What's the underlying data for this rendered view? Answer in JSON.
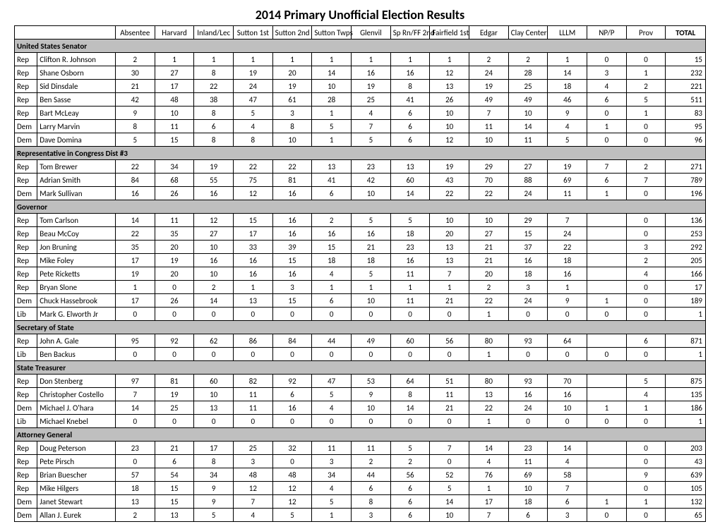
{
  "title": "2014 Primary Unofficial Election Results",
  "columns": [
    "Absentee",
    "Harvard",
    "Inland/Lec",
    "Sutton 1st",
    "Sutton 2nd",
    "Sutton Twps",
    "Glenvil",
    "Sp Rn/FF 2nd",
    "Fairfield 1st",
    "Edgar",
    "Clay Center",
    "LLLM",
    "NP/P",
    "Prov",
    "TOTAL"
  ],
  "style": {
    "section_bg": "#bfbfbf",
    "border_color": "#000000",
    "font_family": "Calibri, Arial, sans-serif",
    "title_fontsize": 18,
    "cell_fontsize": 11
  },
  "sections": [
    {
      "heading": "United States Senator",
      "rows": [
        {
          "party": "Rep",
          "name": "Clifton R. Johnson",
          "v": [
            "2",
            "1",
            "1",
            "1",
            "1",
            "1",
            "1",
            "1",
            "1",
            "2",
            "2",
            "1",
            "0",
            "0"
          ],
          "total": "15"
        },
        {
          "party": "Rep",
          "name": "Shane Osborn",
          "v": [
            "30",
            "27",
            "8",
            "19",
            "20",
            "14",
            "16",
            "16",
            "12",
            "24",
            "28",
            "14",
            "3",
            "1"
          ],
          "total": "232"
        },
        {
          "party": "Rep",
          "name": "Sid Dinsdale",
          "v": [
            "21",
            "17",
            "22",
            "24",
            "19",
            "10",
            "19",
            "8",
            "13",
            "19",
            "25",
            "18",
            "4",
            "2"
          ],
          "total": "221"
        },
        {
          "party": "Rep",
          "name": "Ben Sasse",
          "v": [
            "42",
            "48",
            "38",
            "47",
            "61",
            "28",
            "25",
            "41",
            "26",
            "49",
            "49",
            "46",
            "6",
            "5"
          ],
          "total": "511"
        },
        {
          "party": "Rep",
          "name": "Bart McLeay",
          "v": [
            "9",
            "10",
            "8",
            "5",
            "3",
            "1",
            "4",
            "6",
            "10",
            "7",
            "10",
            "9",
            "0",
            "1"
          ],
          "total": "83"
        },
        {
          "party": "Dem",
          "name": "Larry Marvin",
          "v": [
            "8",
            "11",
            "6",
            "4",
            "8",
            "5",
            "7",
            "6",
            "10",
            "11",
            "14",
            "4",
            "1",
            "0"
          ],
          "total": "95"
        },
        {
          "party": "Dem",
          "name": "Dave Domina",
          "v": [
            "5",
            "15",
            "8",
            "8",
            "10",
            "1",
            "5",
            "6",
            "12",
            "10",
            "11",
            "5",
            "0",
            "0"
          ],
          "total": "96"
        }
      ]
    },
    {
      "heading": "Representative in Congress Dist #3",
      "rows": [
        {
          "party": "Rep",
          "name": "Tom Brewer",
          "v": [
            "22",
            "34",
            "19",
            "22",
            "22",
            "13",
            "23",
            "13",
            "19",
            "29",
            "27",
            "19",
            "7",
            "2"
          ],
          "total": "271"
        },
        {
          "party": "Rep",
          "name": "Adrian Smith",
          "v": [
            "84",
            "68",
            "55",
            "75",
            "81",
            "41",
            "42",
            "60",
            "43",
            "70",
            "88",
            "69",
            "6",
            "7"
          ],
          "total": "789"
        },
        {
          "party": "Dem",
          "name": "Mark Sullivan",
          "v": [
            "16",
            "26",
            "16",
            "12",
            "16",
            "6",
            "10",
            "14",
            "22",
            "22",
            "24",
            "11",
            "1",
            "0"
          ],
          "total": "196"
        }
      ]
    },
    {
      "heading": "Governor",
      "rows": [
        {
          "party": "Rep",
          "name": "Tom Carlson",
          "v": [
            "14",
            "11",
            "12",
            "15",
            "16",
            "2",
            "5",
            "5",
            "10",
            "10",
            "29",
            "7",
            "",
            "0"
          ],
          "total": "136"
        },
        {
          "party": "Rep",
          "name": "Beau McCoy",
          "v": [
            "22",
            "35",
            "27",
            "17",
            "16",
            "16",
            "16",
            "18",
            "20",
            "27",
            "15",
            "24",
            "",
            "0"
          ],
          "total": "253"
        },
        {
          "party": "Rep",
          "name": "Jon Bruning",
          "v": [
            "35",
            "20",
            "10",
            "33",
            "39",
            "15",
            "21",
            "23",
            "13",
            "21",
            "37",
            "22",
            "",
            "3"
          ],
          "total": "292"
        },
        {
          "party": "Rep",
          "name": "Mike Foley",
          "v": [
            "17",
            "19",
            "16",
            "16",
            "15",
            "18",
            "18",
            "16",
            "13",
            "21",
            "16",
            "18",
            "",
            "2"
          ],
          "total": "205"
        },
        {
          "party": "Rep",
          "name": "Pete Ricketts",
          "v": [
            "19",
            "20",
            "10",
            "16",
            "16",
            "4",
            "5",
            "11",
            "7",
            "20",
            "18",
            "16",
            "",
            "4"
          ],
          "total": "166"
        },
        {
          "party": "Rep",
          "name": "Bryan Slone",
          "v": [
            "1",
            "0",
            "2",
            "1",
            "3",
            "1",
            "1",
            "1",
            "1",
            "2",
            "3",
            "1",
            "",
            "0"
          ],
          "total": "17"
        },
        {
          "party": "Dem",
          "name": "Chuck Hassebrook",
          "v": [
            "17",
            "26",
            "14",
            "13",
            "15",
            "6",
            "10",
            "11",
            "21",
            "22",
            "24",
            "9",
            "1",
            "0"
          ],
          "total": "189"
        },
        {
          "party": "Lib",
          "name": "Mark G. Elworth Jr",
          "v": [
            "0",
            "0",
            "0",
            "0",
            "0",
            "0",
            "0",
            "0",
            "0",
            "1",
            "0",
            "0",
            "0",
            "0"
          ],
          "total": "1"
        }
      ]
    },
    {
      "heading": "Secretary of State",
      "rows": [
        {
          "party": "Rep",
          "name": "John A. Gale",
          "v": [
            "95",
            "92",
            "62",
            "86",
            "84",
            "44",
            "49",
            "60",
            "56",
            "80",
            "93",
            "64",
            "",
            "6"
          ],
          "total": "871"
        },
        {
          "party": "Lib",
          "name": "Ben Backus",
          "v": [
            "0",
            "0",
            "0",
            "0",
            "0",
            "0",
            "0",
            "0",
            "0",
            "1",
            "0",
            "0",
            "0",
            "0"
          ],
          "total": "1"
        }
      ]
    },
    {
      "heading": "State Treasurer",
      "rows": [
        {
          "party": "Rep",
          "name": "Don Stenberg",
          "v": [
            "97",
            "81",
            "60",
            "82",
            "92",
            "47",
            "53",
            "64",
            "51",
            "80",
            "93",
            "70",
            "",
            "5"
          ],
          "total": "875"
        },
        {
          "party": "Rep",
          "name": "Christopher Costello",
          "v": [
            "7",
            "19",
            "10",
            "11",
            "6",
            "5",
            "9",
            "8",
            "11",
            "13",
            "16",
            "16",
            "",
            "4"
          ],
          "total": "135"
        },
        {
          "party": "Dem",
          "name": "Michael J. O'hara",
          "v": [
            "14",
            "25",
            "13",
            "11",
            "16",
            "4",
            "10",
            "14",
            "21",
            "22",
            "24",
            "10",
            "1",
            "1"
          ],
          "total": "186"
        },
        {
          "party": "Lib",
          "name": "Michael Knebel",
          "v": [
            "0",
            "0",
            "0",
            "0",
            "0",
            "0",
            "0",
            "0",
            "0",
            "1",
            "0",
            "0",
            "0",
            "0"
          ],
          "total": "1"
        }
      ]
    },
    {
      "heading": "Attorney General",
      "rows": [
        {
          "party": "Rep",
          "name": "Doug Peterson",
          "v": [
            "23",
            "21",
            "17",
            "25",
            "32",
            "11",
            "11",
            "5",
            "7",
            "14",
            "23",
            "14",
            "",
            "0"
          ],
          "total": "203"
        },
        {
          "party": "Rep",
          "name": "Pete Pirsch",
          "v": [
            "0",
            "6",
            "8",
            "3",
            "0",
            "3",
            "2",
            "2",
            "0",
            "4",
            "11",
            "4",
            "",
            "0"
          ],
          "total": "43"
        },
        {
          "party": "Rep",
          "name": "Brian Buescher",
          "v": [
            "57",
            "54",
            "34",
            "48",
            "48",
            "34",
            "44",
            "56",
            "52",
            "76",
            "69",
            "58",
            "",
            "9"
          ],
          "total": "639"
        },
        {
          "party": "Rep",
          "name": "Mike Hilgers",
          "v": [
            "18",
            "15",
            "9",
            "12",
            "12",
            "4",
            "6",
            "6",
            "5",
            "1",
            "10",
            "7",
            "",
            "0"
          ],
          "total": "105"
        },
        {
          "party": "Dem",
          "name": "Janet Stewart",
          "v": [
            "13",
            "15",
            "9",
            "7",
            "12",
            "5",
            "8",
            "6",
            "14",
            "17",
            "18",
            "6",
            "1",
            "1"
          ],
          "total": "132"
        },
        {
          "party": "Dem",
          "name": "Allan J. Eurek",
          "v": [
            "2",
            "13",
            "5",
            "4",
            "5",
            "1",
            "3",
            "6",
            "10",
            "7",
            "6",
            "3",
            "0",
            "0"
          ],
          "total": "65"
        }
      ]
    }
  ]
}
